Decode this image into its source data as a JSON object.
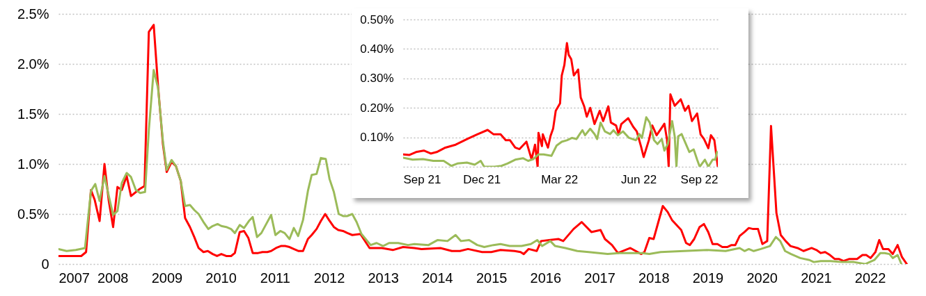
{
  "chart_data": [
    {
      "type": "line",
      "xlim": [
        2007,
        2022.7
      ],
      "xticks": [
        2007,
        2008,
        2009,
        2010,
        2011,
        2012,
        2013,
        2014,
        2015,
        2016,
        2017,
        2018,
        2019,
        2020,
        2021,
        2022
      ],
      "ylim": [
        0,
        2.5
      ],
      "yticks": [
        0,
        {
          "value": 0.5,
          "label": "0.5%"
        },
        {
          "value": 1,
          "label": "1.0%"
        },
        {
          "value": 1.5,
          "label": "1.5%"
        },
        {
          "value": 2,
          "label": "2.0%"
        },
        {
          "value": 2.5,
          "label": "2.5%"
        }
      ],
      "grid": "y",
      "series": [
        {
          "color": "#ff0000",
          "x": [
            2007.0,
            2007.42,
            2007.51,
            2007.6,
            2007.67,
            2007.76,
            2007.85,
            2007.93,
            2008.01,
            2008.09,
            2008.17,
            2008.26,
            2008.34,
            2008.5,
            2008.59,
            2008.67,
            2008.76,
            2008.84,
            2008.93,
            2009.0,
            2009.09,
            2009.17,
            2009.26,
            2009.34,
            2009.43,
            2009.51,
            2009.59,
            2009.68,
            2009.76,
            2009.85,
            2009.93,
            2010.01,
            2010.1,
            2010.19,
            2010.26,
            2010.35,
            2010.43,
            2010.51,
            2010.59,
            2010.69,
            2010.77,
            2010.86,
            2010.93,
            2011.02,
            2011.11,
            2011.19,
            2011.27,
            2011.35,
            2011.44,
            2011.52,
            2011.61,
            2011.68,
            2011.77,
            2011.85,
            2011.93,
            2012.0,
            2012.09,
            2012.17,
            2012.26,
            2012.34,
            2012.43,
            2012.58,
            2012.75,
            2012.98,
            2013.18,
            2013.37,
            2013.58,
            2013.71,
            2014.06,
            2014.27,
            2014.42,
            2014.57,
            2014.83,
            2015.0,
            2015.17,
            2015.43,
            2015.54,
            2015.6,
            2015.69,
            2015.84,
            2015.92,
            2016.07,
            2016.24,
            2016.33,
            2016.52,
            2016.67,
            2016.85,
            2017.02,
            2017.1,
            2017.23,
            2017.34,
            2017.57,
            2017.77,
            2017.83,
            2017.92,
            2018.0,
            2018.17,
            2018.26,
            2018.34,
            2018.51,
            2018.6,
            2018.67,
            2018.75,
            2018.85,
            2018.93,
            2019.01,
            2019.09,
            2019.18,
            2019.27,
            2019.36,
            2019.44,
            2019.51,
            2019.59,
            2019.68,
            2019.76,
            2019.84,
            2019.93,
            2020.01,
            2020.1,
            2020.17,
            2020.27,
            2020.35,
            2020.44,
            2020.53,
            2020.66,
            2020.77,
            2020.92,
            2021.01,
            2021.09,
            2021.17,
            2021.26,
            2021.35,
            2021.43,
            2021.51,
            2021.61,
            2021.68,
            2021.76,
            2021.86,
            2021.93,
            2022.01,
            2022.1,
            2022.17,
            2022.24,
            2022.34,
            2022.42,
            2022.51,
            2022.59,
            2022.68
          ],
          "values": [
            0.08,
            0.08,
            0.12,
            0.74,
            0.64,
            0.43,
            1.0,
            0.63,
            0.37,
            0.77,
            0.74,
            0.88,
            0.68,
            0.75,
            0.78,
            2.32,
            2.39,
            1.78,
            1.2,
            0.92,
            1.02,
            0.98,
            0.83,
            0.46,
            0.37,
            0.27,
            0.16,
            0.12,
            0.13,
            0.1,
            0.08,
            0.1,
            0.08,
            0.08,
            0.11,
            0.32,
            0.33,
            0.26,
            0.11,
            0.11,
            0.12,
            0.12,
            0.13,
            0.16,
            0.18,
            0.18,
            0.17,
            0.15,
            0.13,
            0.13,
            0.25,
            0.29,
            0.35,
            0.43,
            0.5,
            0.44,
            0.37,
            0.34,
            0.33,
            0.31,
            0.29,
            0.3,
            0.16,
            0.16,
            0.14,
            0.17,
            0.16,
            0.15,
            0.16,
            0.13,
            0.13,
            0.15,
            0.12,
            0.12,
            0.14,
            0.13,
            0.12,
            0.1,
            0.15,
            0.13,
            0.23,
            0.24,
            0.25,
            0.23,
            0.35,
            0.42,
            0.32,
            0.34,
            0.25,
            0.19,
            0.11,
            0.16,
            0.1,
            0.12,
            0.26,
            0.25,
            0.58,
            0.52,
            0.44,
            0.34,
            0.21,
            0.19,
            0.25,
            0.37,
            0.4,
            0.32,
            0.2,
            0.2,
            0.17,
            0.17,
            0.19,
            0.19,
            0.28,
            0.32,
            0.36,
            0.35,
            0.35,
            0.2,
            0.23,
            1.38,
            0.51,
            0.29,
            0.23,
            0.18,
            0.16,
            0.13,
            0.16,
            0.14,
            0.11,
            0.12,
            0.09,
            0.05,
            0.05,
            0.03,
            0.05,
            0.05,
            0.05,
            0.09,
            0.09,
            0.06,
            0.12,
            0.24,
            0.15,
            0.15,
            0.1,
            0.19,
            0.07,
            0
          ]
        },
        {
          "color": "#9bbb59",
          "x": [
            2007.0,
            2007.15,
            2007.32,
            2007.49,
            2007.6,
            2007.68,
            2007.76,
            2007.85,
            2007.93,
            2008.01,
            2008.09,
            2008.17,
            2008.26,
            2008.34,
            2008.43,
            2008.51,
            2008.6,
            2008.67,
            2008.76,
            2008.84,
            2008.93,
            2009.0,
            2009.09,
            2009.17,
            2009.26,
            2009.34,
            2009.43,
            2009.51,
            2009.59,
            2009.68,
            2009.77,
            2009.85,
            2009.94,
            2010.01,
            2010.1,
            2010.19,
            2010.26,
            2010.35,
            2010.43,
            2010.52,
            2010.59,
            2010.67,
            2010.75,
            2010.84,
            2010.93,
            2011.01,
            2011.1,
            2011.18,
            2011.27,
            2011.35,
            2011.43,
            2011.52,
            2011.61,
            2011.68,
            2011.77,
            2011.85,
            2011.94,
            2012.01,
            2012.09,
            2012.18,
            2012.26,
            2012.34,
            2012.43,
            2012.51,
            2012.6,
            2012.77,
            2012.88,
            2013.0,
            2013.11,
            2013.28,
            2013.46,
            2013.58,
            2013.84,
            2014.01,
            2014.19,
            2014.34,
            2014.44,
            2014.59,
            2014.74,
            2014.87,
            2015.04,
            2015.17,
            2015.34,
            2015.56,
            2015.73,
            2015.85,
            2015.94,
            2016.09,
            2016.18,
            2016.37,
            2016.59,
            2016.8,
            2017.15,
            2017.36,
            2017.79,
            2017.92,
            2018.13,
            2018.56,
            2018.99,
            2019.33,
            2019.59,
            2019.68,
            2019.76,
            2019.85,
            2019.98,
            2020.15,
            2020.26,
            2020.34,
            2020.43,
            2020.54,
            2020.71,
            2020.88,
            2020.96,
            2021.09,
            2021.27,
            2021.48,
            2021.7,
            2021.91,
            2022.08,
            2022.19,
            2022.27,
            2022.36,
            2022.42,
            2022.51,
            2022.58
          ],
          "values": [
            0.15,
            0.13,
            0.14,
            0.16,
            0.73,
            0.8,
            0.63,
            0.88,
            0.68,
            0.49,
            0.53,
            0.81,
            0.91,
            0.87,
            0.74,
            0.71,
            0.72,
            1.34,
            1.94,
            1.76,
            1.23,
            0.94,
            1.04,
            0.98,
            0.83,
            0.58,
            0.59,
            0.54,
            0.5,
            0.42,
            0.35,
            0.38,
            0.4,
            0.38,
            0.37,
            0.35,
            0.31,
            0.39,
            0.36,
            0.43,
            0.47,
            0.27,
            0.31,
            0.4,
            0.49,
            0.29,
            0.33,
            0.31,
            0.25,
            0.36,
            0.28,
            0.44,
            0.73,
            0.89,
            0.9,
            1.06,
            1.05,
            0.85,
            0.72,
            0.5,
            0.48,
            0.48,
            0.5,
            0.42,
            0.3,
            0.19,
            0.21,
            0.18,
            0.21,
            0.21,
            0.19,
            0.2,
            0.19,
            0.24,
            0.23,
            0.29,
            0.23,
            0.24,
            0.19,
            0.17,
            0.19,
            0.2,
            0.18,
            0.18,
            0.2,
            0.24,
            0.18,
            0.23,
            0.18,
            0.16,
            0.13,
            0.12,
            0.1,
            0.11,
            0.11,
            0.1,
            0.12,
            0.13,
            0.14,
            0.13,
            0.16,
            0.13,
            0.15,
            0.13,
            0.15,
            0.18,
            0.27,
            0.23,
            0.13,
            0.1,
            0.06,
            0.04,
            0.02,
            0.03,
            0.03,
            0.02,
            0.02,
            0,
            0.04,
            0.11,
            0.11,
            0.1,
            0.06,
            0.09,
            0
          ]
        }
      ]
    },
    {
      "type": "line",
      "xlim": [
        "2021-09-01",
        "2022-09-01"
      ],
      "xticks": [
        {
          "value": "2021-09-01",
          "label": "Sep 21"
        },
        {
          "value": "2021-12-01",
          "label": "Dec 21"
        },
        {
          "value": "2022-03-01",
          "label": "Mar 22"
        },
        {
          "value": "2022-06-01",
          "label": "Jun 22"
        },
        {
          "value": "2022-09-01",
          "label": "Sep 22"
        }
      ],
      "ylim": [
        0,
        0.5
      ],
      "yticks": [
        {
          "value": 0,
          "label": null
        },
        {
          "value": 0.1,
          "label": "0.10%"
        },
        {
          "value": 0.2,
          "label": "0.20%"
        },
        {
          "value": 0.3,
          "label": "0.30%"
        },
        {
          "value": 0.4,
          "label": "0.40%"
        },
        {
          "value": 0.5,
          "label": "0.50%"
        }
      ],
      "grid": "y",
      "series": [
        {
          "color": "#ff0000",
          "x": [
            "2021-09-01",
            "2021-09-08",
            "2021-09-16",
            "2021-09-25",
            "2021-10-03",
            "2021-10-10",
            "2021-10-20",
            "2021-11-01",
            "2021-11-15",
            "2021-11-26",
            "2021-12-08",
            "2021-12-15",
            "2021-12-23",
            "2021-12-29",
            "2022-01-03",
            "2022-01-09",
            "2022-01-14",
            "2022-01-22",
            "2022-01-28",
            "2022-02-01",
            "2022-02-04",
            "2022-02-05",
            "2022-02-09",
            "2022-02-10",
            "2022-02-16",
            "2022-02-19",
            "2022-02-22",
            "2022-02-25",
            "2022-03-02",
            "2022-03-04",
            "2022-03-07",
            "2022-03-10",
            "2022-03-12",
            "2022-03-15",
            "2022-03-18",
            "2022-03-23",
            "2022-03-26",
            "2022-03-30",
            "2022-04-02",
            "2022-04-06",
            "2022-04-11",
            "2022-04-17",
            "2022-04-21",
            "2022-04-27",
            "2022-04-30",
            "2022-05-06",
            "2022-05-09",
            "2022-05-12",
            "2022-05-20",
            "2022-05-26",
            "2022-05-30",
            "2022-06-04",
            "2022-06-07",
            "2022-06-13",
            "2022-06-17",
            "2022-06-22",
            "2022-06-26",
            "2022-07-01",
            "2022-07-04",
            "2022-07-06",
            "2022-07-08",
            "2022-07-13",
            "2022-07-20",
            "2022-07-25",
            "2022-07-29",
            "2022-08-02",
            "2022-08-08",
            "2022-08-12",
            "2022-08-16",
            "2022-08-21",
            "2022-08-24",
            "2022-08-28",
            "2022-09-01"
          ],
          "values": [
            0.042,
            0.04,
            0.05,
            0.055,
            0.045,
            0.05,
            0.065,
            0.075,
            0.095,
            0.11,
            0.125,
            0.11,
            0.11,
            0.09,
            0.09,
            0.065,
            0.06,
            0.085,
            0.025,
            0.075,
            0,
            0.115,
            0.07,
            0.11,
            0.065,
            0.105,
            0.13,
            0.19,
            0.215,
            0.31,
            0.345,
            0.42,
            0.38,
            0.365,
            0.31,
            0.33,
            0.235,
            0.205,
            0.17,
            0.2,
            0.145,
            0.19,
            0.155,
            0.205,
            0.15,
            0.14,
            0.11,
            0.145,
            0.165,
            0.135,
            0.12,
            0.068,
            0.033,
            0.09,
            0.14,
            0.107,
            0.124,
            0.146,
            0.094,
            0,
            0.246,
            0.207,
            0.229,
            0.19,
            0.207,
            0.155,
            0.181,
            0.11,
            0.094,
            0.063,
            0.107,
            0.09,
            0
          ]
        },
        {
          "color": "#9bbb59",
          "x": [
            "2021-09-01",
            "2021-09-12",
            "2021-09-24",
            "2021-10-06",
            "2021-10-18",
            "2021-10-27",
            "2021-11-03",
            "2021-11-14",
            "2021-11-23",
            "2021-11-30",
            "2021-12-04",
            "2021-12-16",
            "2021-12-24",
            "2021-12-31",
            "2022-01-09",
            "2022-01-18",
            "2022-01-24",
            "2022-01-30",
            "2022-02-05",
            "2022-02-11",
            "2022-02-20",
            "2022-02-26",
            "2022-03-04",
            "2022-03-10",
            "2022-03-16",
            "2022-03-21",
            "2022-03-26",
            "2022-03-28",
            "2022-03-31",
            "2022-04-06",
            "2022-04-11",
            "2022-04-14",
            "2022-04-18",
            "2022-04-23",
            "2022-04-29",
            "2022-05-03",
            "2022-05-08",
            "2022-05-14",
            "2022-05-21",
            "2022-05-29",
            "2022-06-02",
            "2022-06-05",
            "2022-06-10",
            "2022-06-14",
            "2022-06-19",
            "2022-06-23",
            "2022-06-28",
            "2022-07-01",
            "2022-07-05",
            "2022-07-10",
            "2022-07-13",
            "2022-07-15",
            "2022-07-17",
            "2022-07-21",
            "2022-07-26",
            "2022-07-30",
            "2022-08-04",
            "2022-08-08",
            "2022-08-11",
            "2022-08-17",
            "2022-08-21",
            "2022-08-26",
            "2022-08-29",
            "2022-08-31"
          ],
          "values": [
            0.031,
            0.024,
            0.026,
            0.02,
            0.02,
            0.003,
            0.011,
            0.014,
            0.007,
            0.02,
            0,
            0,
            0.003,
            0.011,
            0.024,
            0.029,
            0.02,
            0.026,
            0.042,
            0.042,
            0.037,
            0.072,
            0.085,
            0.09,
            0.098,
            0.094,
            0.116,
            0.124,
            0.107,
            0.129,
            0.111,
            0.094,
            0.15,
            0.12,
            0.111,
            0.124,
            0.107,
            0.12,
            0.098,
            0.09,
            0.111,
            0.098,
            0.168,
            0.15,
            0.09,
            0.077,
            0.094,
            0.055,
            0.077,
            0.155,
            0.103,
            0,
            0.103,
            0.111,
            0.077,
            0.05,
            0.059,
            0.024,
            0,
            0.024,
            0,
            0.024,
            0.024,
            0.05
          ]
        }
      ]
    }
  ]
}
